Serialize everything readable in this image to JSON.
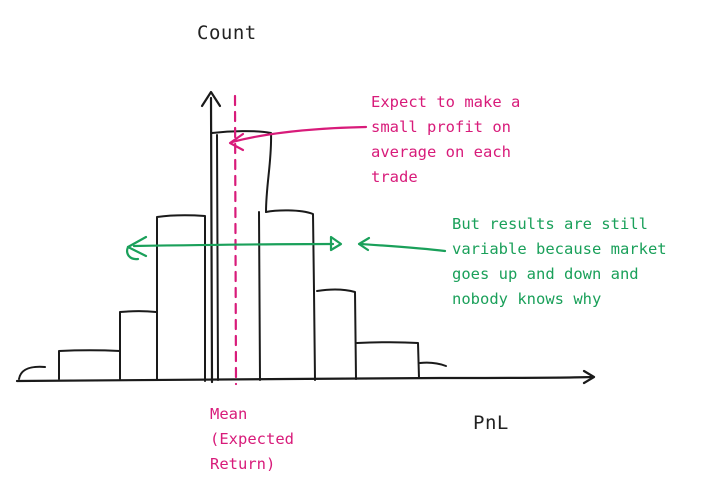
{
  "axes": {
    "y_label": "Count",
    "x_label": "PnL"
  },
  "annotations": {
    "mean": {
      "lines": [
        "Mean",
        "(Expected",
        "Return)"
      ]
    },
    "profit_note": {
      "lines": [
        "Expect to make a",
        "small profit on",
        "average on each",
        "trade"
      ]
    },
    "variability_note": {
      "lines": [
        "But results are still",
        "variable because market",
        "goes up and down and",
        "nobody knows why"
      ]
    }
  },
  "colors": {
    "ink": "#1a1a1a",
    "mean_accent": "#d81b7a",
    "spread_accent": "#1aa05a"
  }
}
